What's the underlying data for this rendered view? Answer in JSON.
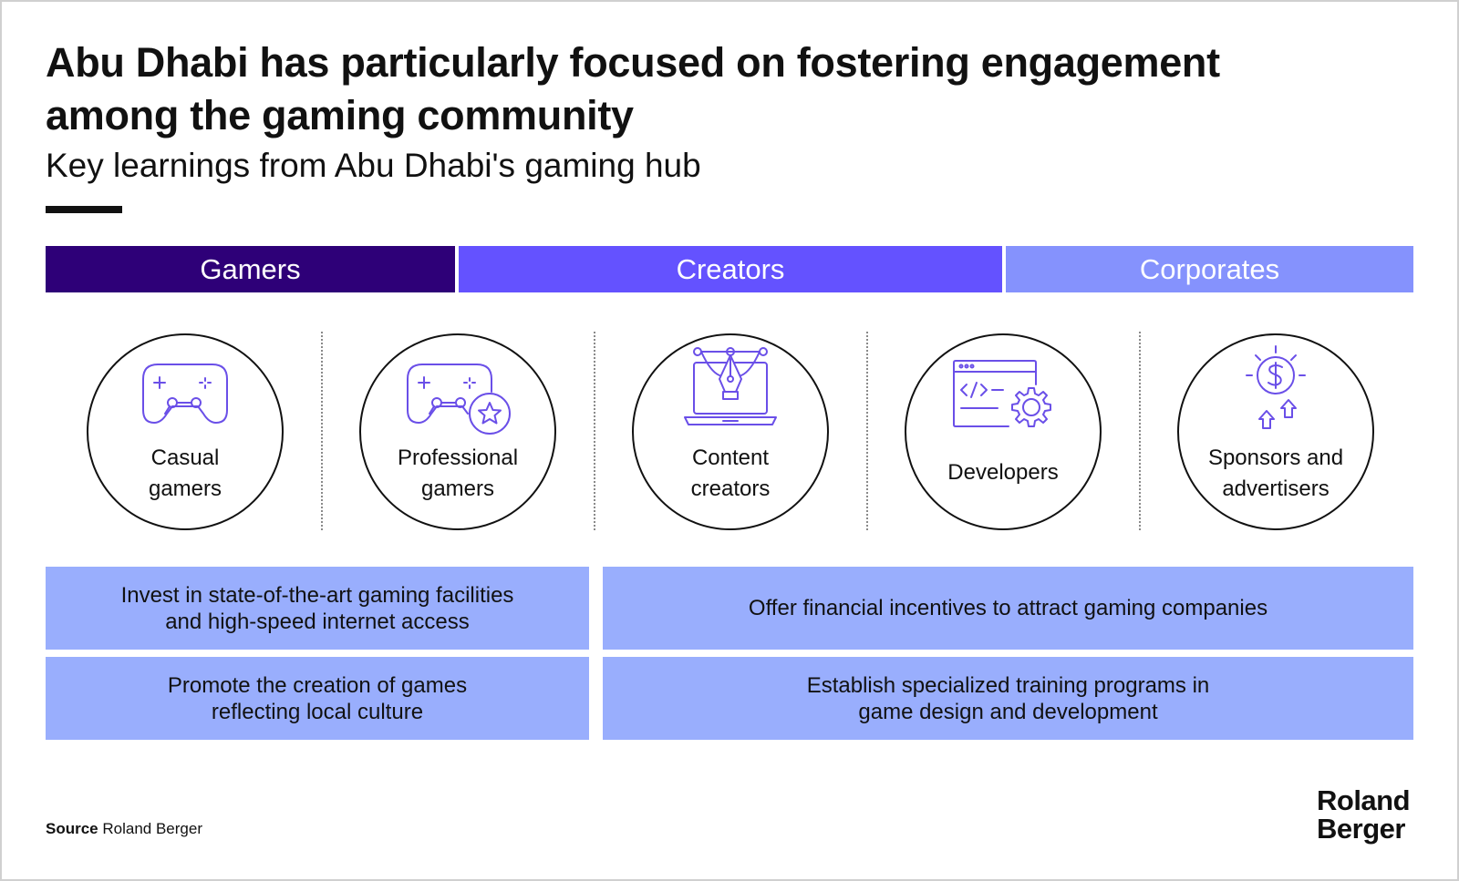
{
  "title_line1": "Abu Dhabi has particularly focused on fostering engagement",
  "title_line2": "among the gaming community",
  "subtitle": "Key learnings from Abu Dhabi's gaming hub",
  "colors": {
    "gamers": "#2e0078",
    "creators": "#6452ff",
    "corporates": "#8592fd",
    "action_box": "#99aefd",
    "icon_stroke": "#6a4fe8"
  },
  "bands": {
    "gamers": "Gamers",
    "creators": "Creators",
    "corporates": "Corporates"
  },
  "stakeholders": [
    {
      "line1": "Casual",
      "line2": "gamers",
      "icon": "gamepad-icon"
    },
    {
      "line1": "Professional",
      "line2": "gamers",
      "icon": "gamepad-star-icon"
    },
    {
      "line1": "Content",
      "line2": "creators",
      "icon": "pen-laptop-icon"
    },
    {
      "line1": "Developers",
      "line2": "",
      "icon": "code-gear-icon"
    },
    {
      "line1": "Sponsors and",
      "line2": "advertisers",
      "icon": "dollar-bulb-icon"
    }
  ],
  "actions": {
    "box1_line1": "Invest in state-of-the-art gaming facilities",
    "box1_line2": "and high-speed internet access",
    "box2": "Offer financial incentives to attract gaming companies",
    "box3_line1": "Promote the creation of games",
    "box3_line2": "reflecting local culture",
    "box4_line1": "Establish specialized training programs in",
    "box4_line2": "game design and development"
  },
  "source_label": "Source",
  "source_text": "Roland Berger",
  "logo_line1": "Roland",
  "logo_line2": "Berger"
}
